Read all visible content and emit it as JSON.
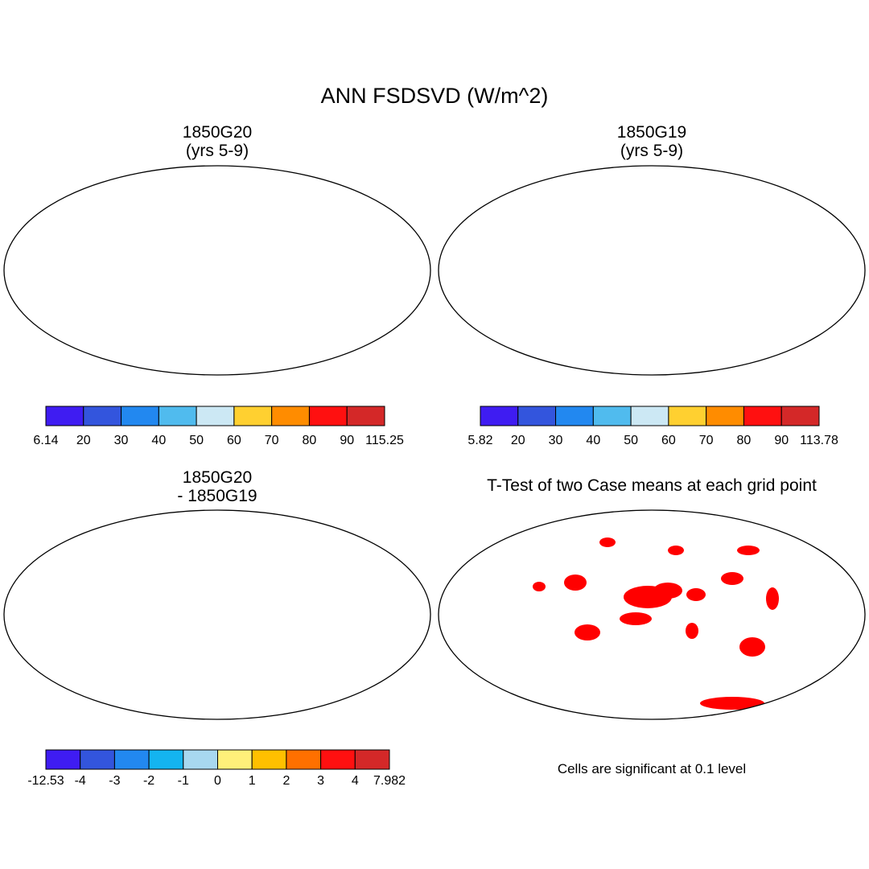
{
  "title": "ANN FSDSVD (W/m^2)",
  "panels": [
    {
      "title_line1": "1850G20",
      "title_line2": "(yrs 5-9)"
    },
    {
      "title_line1": "1850G19",
      "title_line2": "(yrs 5-9)"
    },
    {
      "title_line1": "1850G20",
      "title_line2": "- 1850G19"
    },
    {
      "title_line1": "T-Test of two Case means at each grid point",
      "title_line2": ""
    }
  ],
  "colorbars": [
    {
      "labels": [
        "6.14",
        "20",
        "30",
        "40",
        "50",
        "60",
        "70",
        "80",
        "90",
        "115.25"
      ],
      "colors": [
        "#3f1cf2",
        "#3355dd",
        "#2288f0",
        "#50bbee",
        "#cce8f4",
        "#ffd030",
        "#ff8c00",
        "#ff1010",
        "#d42828"
      ]
    },
    {
      "labels": [
        "5.82",
        "20",
        "30",
        "40",
        "50",
        "60",
        "70",
        "80",
        "90",
        "113.78"
      ],
      "colors": [
        "#3f1cf2",
        "#3355dd",
        "#2288f0",
        "#50bbee",
        "#cce8f4",
        "#ffd030",
        "#ff8c00",
        "#ff1010",
        "#d42828"
      ]
    },
    {
      "labels": [
        "-12.53",
        "-4",
        "-3",
        "-2",
        "-1",
        "0",
        "1",
        "2",
        "3",
        "4",
        "7.982"
      ],
      "colors": [
        "#3f1cf2",
        "#3355dd",
        "#2288f0",
        "#14b4f0",
        "#a8d8f0",
        "#fff07a",
        "#ffc000",
        "#ff7000",
        "#ff1010",
        "#d42828"
      ]
    }
  ],
  "significance_note": "Cells are significant at 0.1 level",
  "colors": {
    "significant": "#ff0000",
    "land_outline": "#000000"
  }
}
